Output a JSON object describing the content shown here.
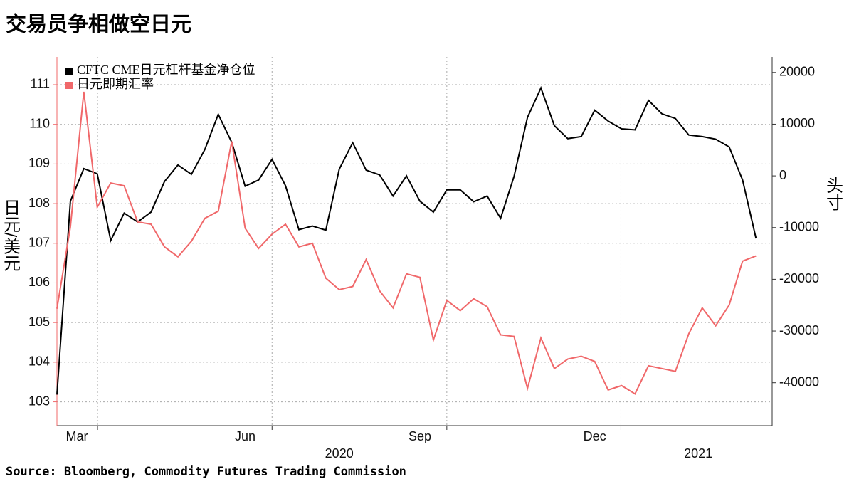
{
  "chart_data": {
    "type": "line",
    "title": "交易员争相做空日元",
    "source": "Source: Bloomberg, Commodity Futures Trading Commission",
    "ylabel": "日元/美元",
    "y2label": "头寸",
    "x": [
      0,
      1,
      2,
      3,
      4,
      5,
      6,
      7,
      8,
      9,
      10,
      11,
      12,
      13,
      14,
      15,
      16,
      17,
      18,
      19,
      20,
      21,
      22,
      23,
      24,
      25,
      26,
      27,
      28,
      29,
      30,
      31,
      32,
      33,
      34,
      35,
      36,
      37,
      38,
      39,
      40,
      41,
      42,
      43,
      44,
      45,
      46,
      47,
      48,
      49,
      50,
      51,
      52
    ],
    "xlim": [
      0,
      53.2
    ],
    "xticks": [
      {
        "value": 1.48,
        "label": "Mar"
      },
      {
        "value": 14.0,
        "label": "Jun"
      },
      {
        "value": 27.0,
        "label": "Sep"
      },
      {
        "value": 40.0,
        "label": "Dec"
      }
    ],
    "year_labels": [
      {
        "value": 21.0,
        "label": "2020"
      },
      {
        "value": 47.7,
        "label": "2021"
      }
    ],
    "xgrid": [
      3.02,
      16.0,
      29.0,
      41.95
    ],
    "ylim": [
      102.4,
      111.7
    ],
    "yticks": [
      103,
      104,
      105,
      106,
      107,
      108,
      109,
      110,
      111
    ],
    "y2lim": [
      -48300,
      23000
    ],
    "y2ticks": [
      -40000,
      -30000,
      -20000,
      -10000,
      0,
      10000,
      20000
    ],
    "grid": true,
    "legend": "upper left",
    "series": [
      {
        "name": "CFTC CME日元杠杆基金净仓位",
        "color": "#000000",
        "axis": "y2",
        "values": [
          -42300,
          -4900,
          1400,
          400,
          -12500,
          -7200,
          -8900,
          -7000,
          -1100,
          2100,
          300,
          5100,
          11900,
          6500,
          -2000,
          -800,
          3200,
          -1900,
          -10400,
          -9700,
          -10500,
          1300,
          6400,
          1100,
          200,
          -3900,
          0,
          -4900,
          -7000,
          -2700,
          -2700,
          -5000,
          -3900,
          -8200,
          -100,
          11300,
          17000,
          9700,
          7200,
          7600,
          12700,
          10600,
          9100,
          8900,
          14600,
          12000,
          11100,
          7900,
          7600,
          7100,
          5600,
          -800,
          -12100
        ]
      },
      {
        "name": "日元即期汇率",
        "color": "#f0686a",
        "axis": "y",
        "values": [
          105.35,
          107.41,
          110.82,
          107.91,
          108.52,
          108.45,
          107.54,
          107.48,
          106.91,
          106.66,
          107.05,
          107.63,
          107.81,
          109.57,
          107.38,
          106.87,
          107.23,
          107.48,
          106.91,
          107.0,
          106.12,
          105.83,
          105.91,
          106.59,
          105.8,
          105.37,
          106.23,
          106.14,
          104.56,
          105.56,
          105.3,
          105.6,
          105.4,
          104.69,
          104.65,
          103.34,
          104.61,
          103.84,
          104.08,
          104.15,
          104.02,
          103.3,
          103.41,
          103.2,
          103.91,
          103.84,
          103.77,
          104.72,
          105.37,
          104.92,
          105.44,
          106.55,
          106.68
        ]
      }
    ]
  }
}
